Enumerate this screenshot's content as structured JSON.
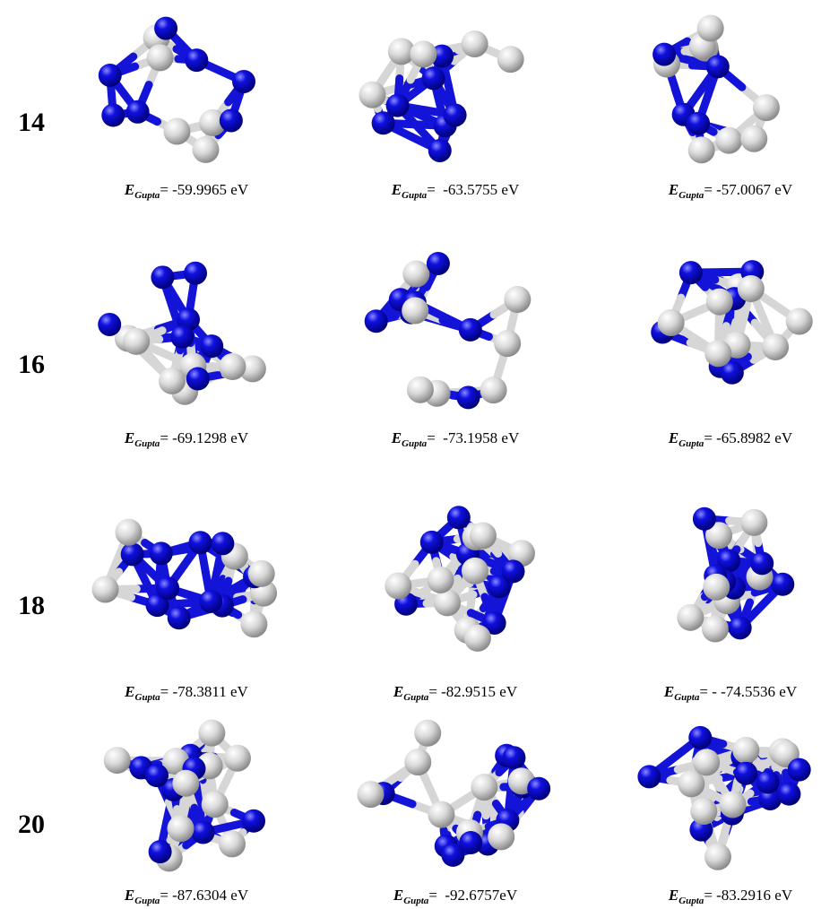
{
  "energy_symbol": "E",
  "energy_subscript": "Gupta",
  "rows": [
    {
      "label": "14",
      "cells": [
        {
          "energy": "= -59.9965 eV"
        },
        {
          "energy": "=  -63.5755 eV"
        },
        {
          "energy": "= -57.0067 eV"
        }
      ]
    },
    {
      "label": "16",
      "cells": [
        {
          "energy": "= -69.1298 eV"
        },
        {
          "energy": "=  -73.1958 eV"
        },
        {
          "energy": "= -65.8982 eV"
        }
      ]
    },
    {
      "label": "18",
      "cells": [
        {
          "energy": "= -78.3811 eV"
        },
        {
          "energy": "= -82.9515 eV"
        },
        {
          "energy": "= - -74.5536 eV"
        }
      ]
    },
    {
      "label": "20",
      "cells": [
        {
          "energy": "= -87.6304 eV"
        },
        {
          "energy": "=  -92.6757eV"
        },
        {
          "energy": "= -83.2916 eV"
        }
      ]
    }
  ]
}
